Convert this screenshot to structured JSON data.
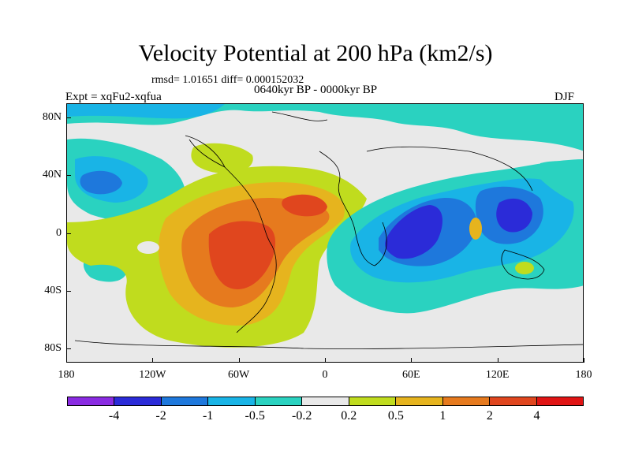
{
  "title": "Velocity Potential at 200 hPa (km2/s)",
  "stats": "rmsd= 1.01651 diff= 0.000152032",
  "experiment": "Expt = xqFu2-xqfua",
  "period": "0640kyr BP - 0000kyr BP",
  "season": "DJF",
  "y_axis": {
    "ticks": [
      "80N",
      "40N",
      "0",
      "40S",
      "80S"
    ],
    "values": [
      80,
      40,
      0,
      -40,
      -80
    ]
  },
  "x_axis": {
    "ticks": [
      "180",
      "120W",
      "60W",
      "0",
      "60E",
      "120E",
      "180"
    ],
    "values": [
      -180,
      -120,
      -60,
      0,
      60,
      120,
      180
    ]
  },
  "colorbar": {
    "labels": [
      "-4",
      "-2",
      "-1",
      "-0.5",
      "-0.2",
      "0.2",
      "0.5",
      "1",
      "2",
      "4"
    ],
    "colors": [
      "#8a2be2",
      "#2b2bd8",
      "#1e78dc",
      "#19b4e6",
      "#2ad2c0",
      "#e9e9e9",
      "#c0dc1e",
      "#e6b41e",
      "#e67a1e",
      "#e0461e",
      "#e01414"
    ]
  }
}
